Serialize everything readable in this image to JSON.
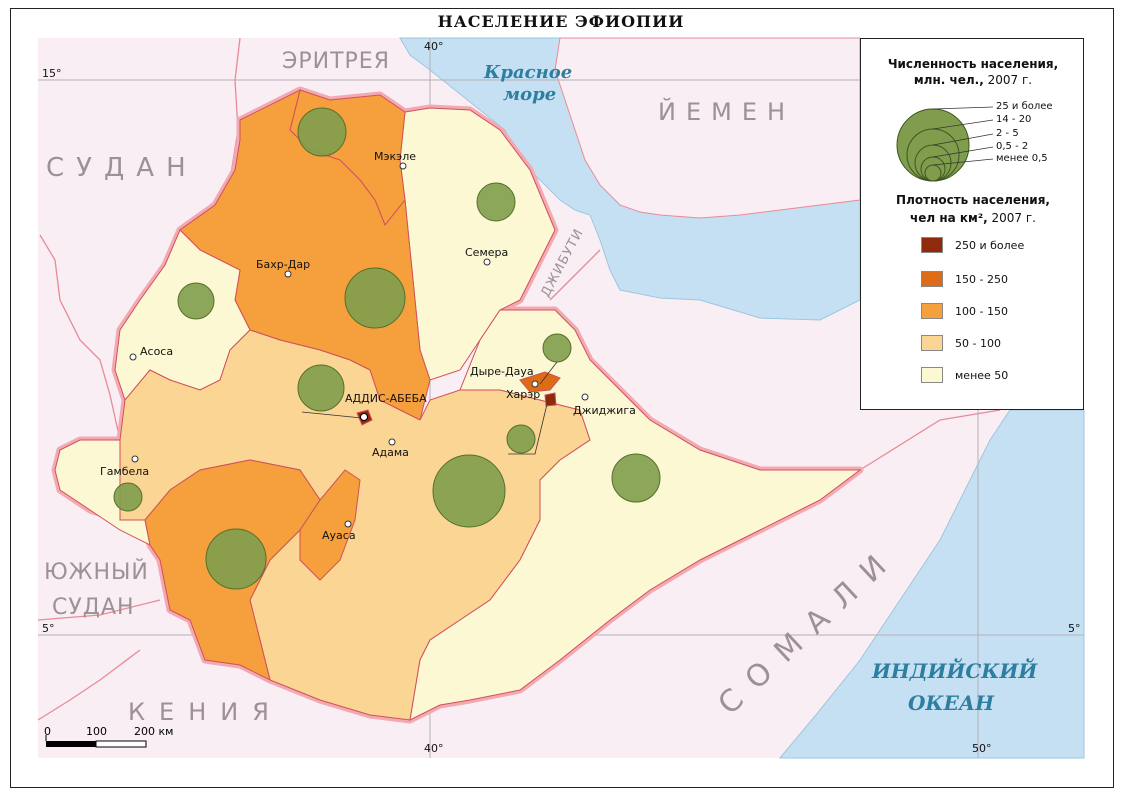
{
  "title": "НАСЕЛЕНИЕ ЭФИОПИИ",
  "colors": {
    "sea": "#c5e0f2",
    "foreign_land": "#f9eef3",
    "border": "#e88b98",
    "density_250plus": "#8f2a0d",
    "density_150_250": "#dd6c17",
    "density_100_150": "#f5a03d",
    "density_50_100": "#fbd594",
    "density_lt50": "#fdf8d4",
    "circle": "#7f9d4d"
  },
  "countries": {
    "eritrea": "ЭРИТРЕЯ",
    "yemen": "ЙЕМЕН",
    "sudan": "СУДАН",
    "djibouti": "ДЖИБУТИ",
    "south_sudan_1": "ЮЖНЫЙ",
    "south_sudan_2": "СУДАН",
    "somalia": "СОМАЛИ",
    "kenya": "КЕНИЯ"
  },
  "seas": {
    "red_sea_1": "Красное",
    "red_sea_2": "море",
    "indian_1": "ИНДИЙСКИЙ",
    "indian_2": "ОКЕАН"
  },
  "cities": {
    "mekele": "Мэкэле",
    "bahr_dar": "Бахр-Дар",
    "semera": "Семера",
    "asosa": "Асоса",
    "addis": "АДДИС-АБЕБА",
    "adama": "Адама",
    "dire_dawa": "Дыре-Дауа",
    "harar": "Харэр",
    "jijiga": "Джиджига",
    "gambela": "Гамбела",
    "awasa": "Ауаса"
  },
  "coords": {
    "lon40_top": "40°",
    "lon40_bottom": "40°",
    "lon50": "50°",
    "lat15": "15°",
    "lat5_left": "5°",
    "lat5_right": "5°"
  },
  "legend": {
    "pop_title_1": "Численность населения,",
    "pop_title_2": "млн. чел.,",
    "pop_title_year": "2007 г.",
    "sizes": [
      "25 и более",
      "14 - 20",
      "2 - 5",
      "0,5 - 2",
      "менее 0,5"
    ],
    "density_title_1": "Плотность населения,",
    "density_title_2": "чел на км²,",
    "density_title_year": "2007 г.",
    "density_classes": [
      "250 и более",
      "150 - 250",
      "100 - 150",
      "50 - 100",
      "менее 50"
    ]
  },
  "scale": {
    "t0": "0",
    "t100": "100",
    "t200": "200 км"
  }
}
